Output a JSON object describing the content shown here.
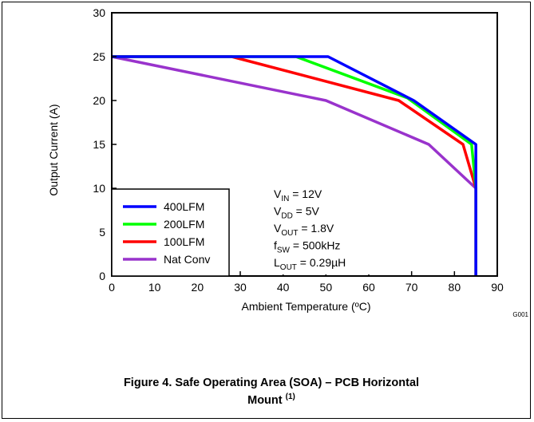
{
  "chart_data": {
    "type": "line",
    "xlabel": "Ambient Temperature (ºC)",
    "ylabel": "Output Current (A)",
    "xlim": [
      0,
      90
    ],
    "ylim": [
      0,
      30
    ],
    "xticks": [
      "0",
      "10",
      "20",
      "30",
      "40",
      "50",
      "60",
      "70",
      "80",
      "90"
    ],
    "yticks": [
      "0",
      "5",
      "10",
      "15",
      "20",
      "25",
      "30"
    ],
    "grid": false,
    "legend_position": "bottom-left",
    "series": [
      {
        "name": "400LFM",
        "color": "#0000ff",
        "x": [
          0,
          50.5,
          70.5,
          85,
          85,
          85
        ],
        "y": [
          25,
          25,
          20,
          15,
          10,
          0
        ]
      },
      {
        "name": "200LFM",
        "color": "#00ff00",
        "x": [
          0,
          43,
          69,
          84,
          85,
          85
        ],
        "y": [
          25,
          25,
          20.3,
          15,
          10,
          0
        ]
      },
      {
        "name": "100LFM",
        "color": "#ff0000",
        "x": [
          0,
          28,
          67,
          82,
          85,
          85
        ],
        "y": [
          25,
          25,
          20,
          15,
          10,
          0
        ]
      },
      {
        "name": "Nat Conv",
        "color": "#9933cc",
        "x": [
          0,
          50,
          74,
          85,
          85
        ],
        "y": [
          25,
          20,
          15,
          10,
          0
        ]
      }
    ],
    "annotation_lines": [
      {
        "main": "V",
        "sub": "IN",
        "rest": " = 12V"
      },
      {
        "main": "V",
        "sub": "DD",
        "rest": " = 5V"
      },
      {
        "main": "V",
        "sub": "OUT",
        "rest": " = 1.8V"
      },
      {
        "main": "f",
        "sub": "SW",
        "rest": " = 500kHz"
      },
      {
        "main": "L",
        "sub": "OUT",
        "rest": " = 0.29µH"
      }
    ],
    "graph_id": "G001"
  },
  "caption": {
    "line1": "Figure 4. Safe Operating Area (SOA) – PCB Horizontal",
    "line2": "Mount",
    "note_mark": "(1)"
  }
}
